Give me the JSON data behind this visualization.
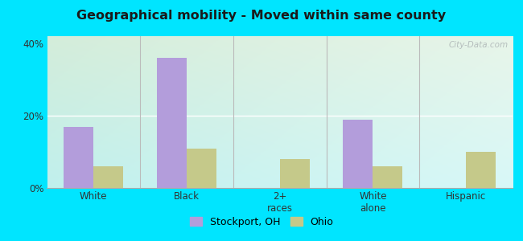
{
  "title": "Geographical mobility - Moved within same county",
  "categories": [
    "White",
    "Black",
    "2+\nraces",
    "White\nalone",
    "Hispanic"
  ],
  "stockport_values": [
    17,
    36,
    0,
    19,
    0
  ],
  "ohio_values": [
    6,
    11,
    8,
    6,
    10
  ],
  "stockport_color": "#b39ddb",
  "ohio_color": "#c5c98a",
  "background_outer": "#00e5ff",
  "bg_topleft": "#d8eeda",
  "bg_topright": "#e8f5e9",
  "bg_bottomleft": "#c8f0ee",
  "bg_bottomright": "#d0f5f5",
  "ylim": [
    0,
    42
  ],
  "yticks": [
    0,
    20,
    40
  ],
  "ytick_labels": [
    "0%",
    "20%",
    "40%"
  ],
  "bar_width": 0.32,
  "legend_stockport": "Stockport, OH",
  "legend_ohio": "Ohio",
  "watermark": "City-Data.com"
}
